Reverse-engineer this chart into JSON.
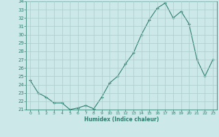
{
  "x": [
    0,
    1,
    2,
    3,
    4,
    5,
    6,
    7,
    8,
    9,
    10,
    11,
    12,
    13,
    14,
    15,
    16,
    17,
    18,
    19,
    20,
    21,
    22,
    23
  ],
  "y": [
    24.5,
    23.0,
    22.5,
    21.8,
    21.8,
    21.0,
    21.2,
    21.5,
    21.1,
    22.5,
    24.2,
    25.0,
    26.5,
    27.8,
    30.0,
    31.8,
    33.2,
    33.8,
    32.0,
    32.8,
    31.3,
    27.0,
    25.0,
    27.0
  ],
  "title": "",
  "xlabel": "Humidex (Indice chaleur)",
  "ylabel": "",
  "ylim": [
    21,
    34
  ],
  "xlim": [
    -0.5,
    23.5
  ],
  "yticks": [
    21,
    22,
    23,
    24,
    25,
    26,
    27,
    28,
    29,
    30,
    31,
    32,
    33,
    34
  ],
  "xticks": [
    0,
    1,
    2,
    3,
    4,
    5,
    6,
    7,
    8,
    9,
    10,
    11,
    12,
    13,
    14,
    15,
    16,
    17,
    18,
    19,
    20,
    21,
    22,
    23
  ],
  "line_color": "#2d7d6e",
  "marker_color": "#2d7d6e",
  "bg_color": "#cce8e8",
  "grid_color": "#aacccc",
  "xlabel_color": "#2d7d6e",
  "tick_color": "#2d7d6e",
  "axis_color": "#2d7d6e"
}
